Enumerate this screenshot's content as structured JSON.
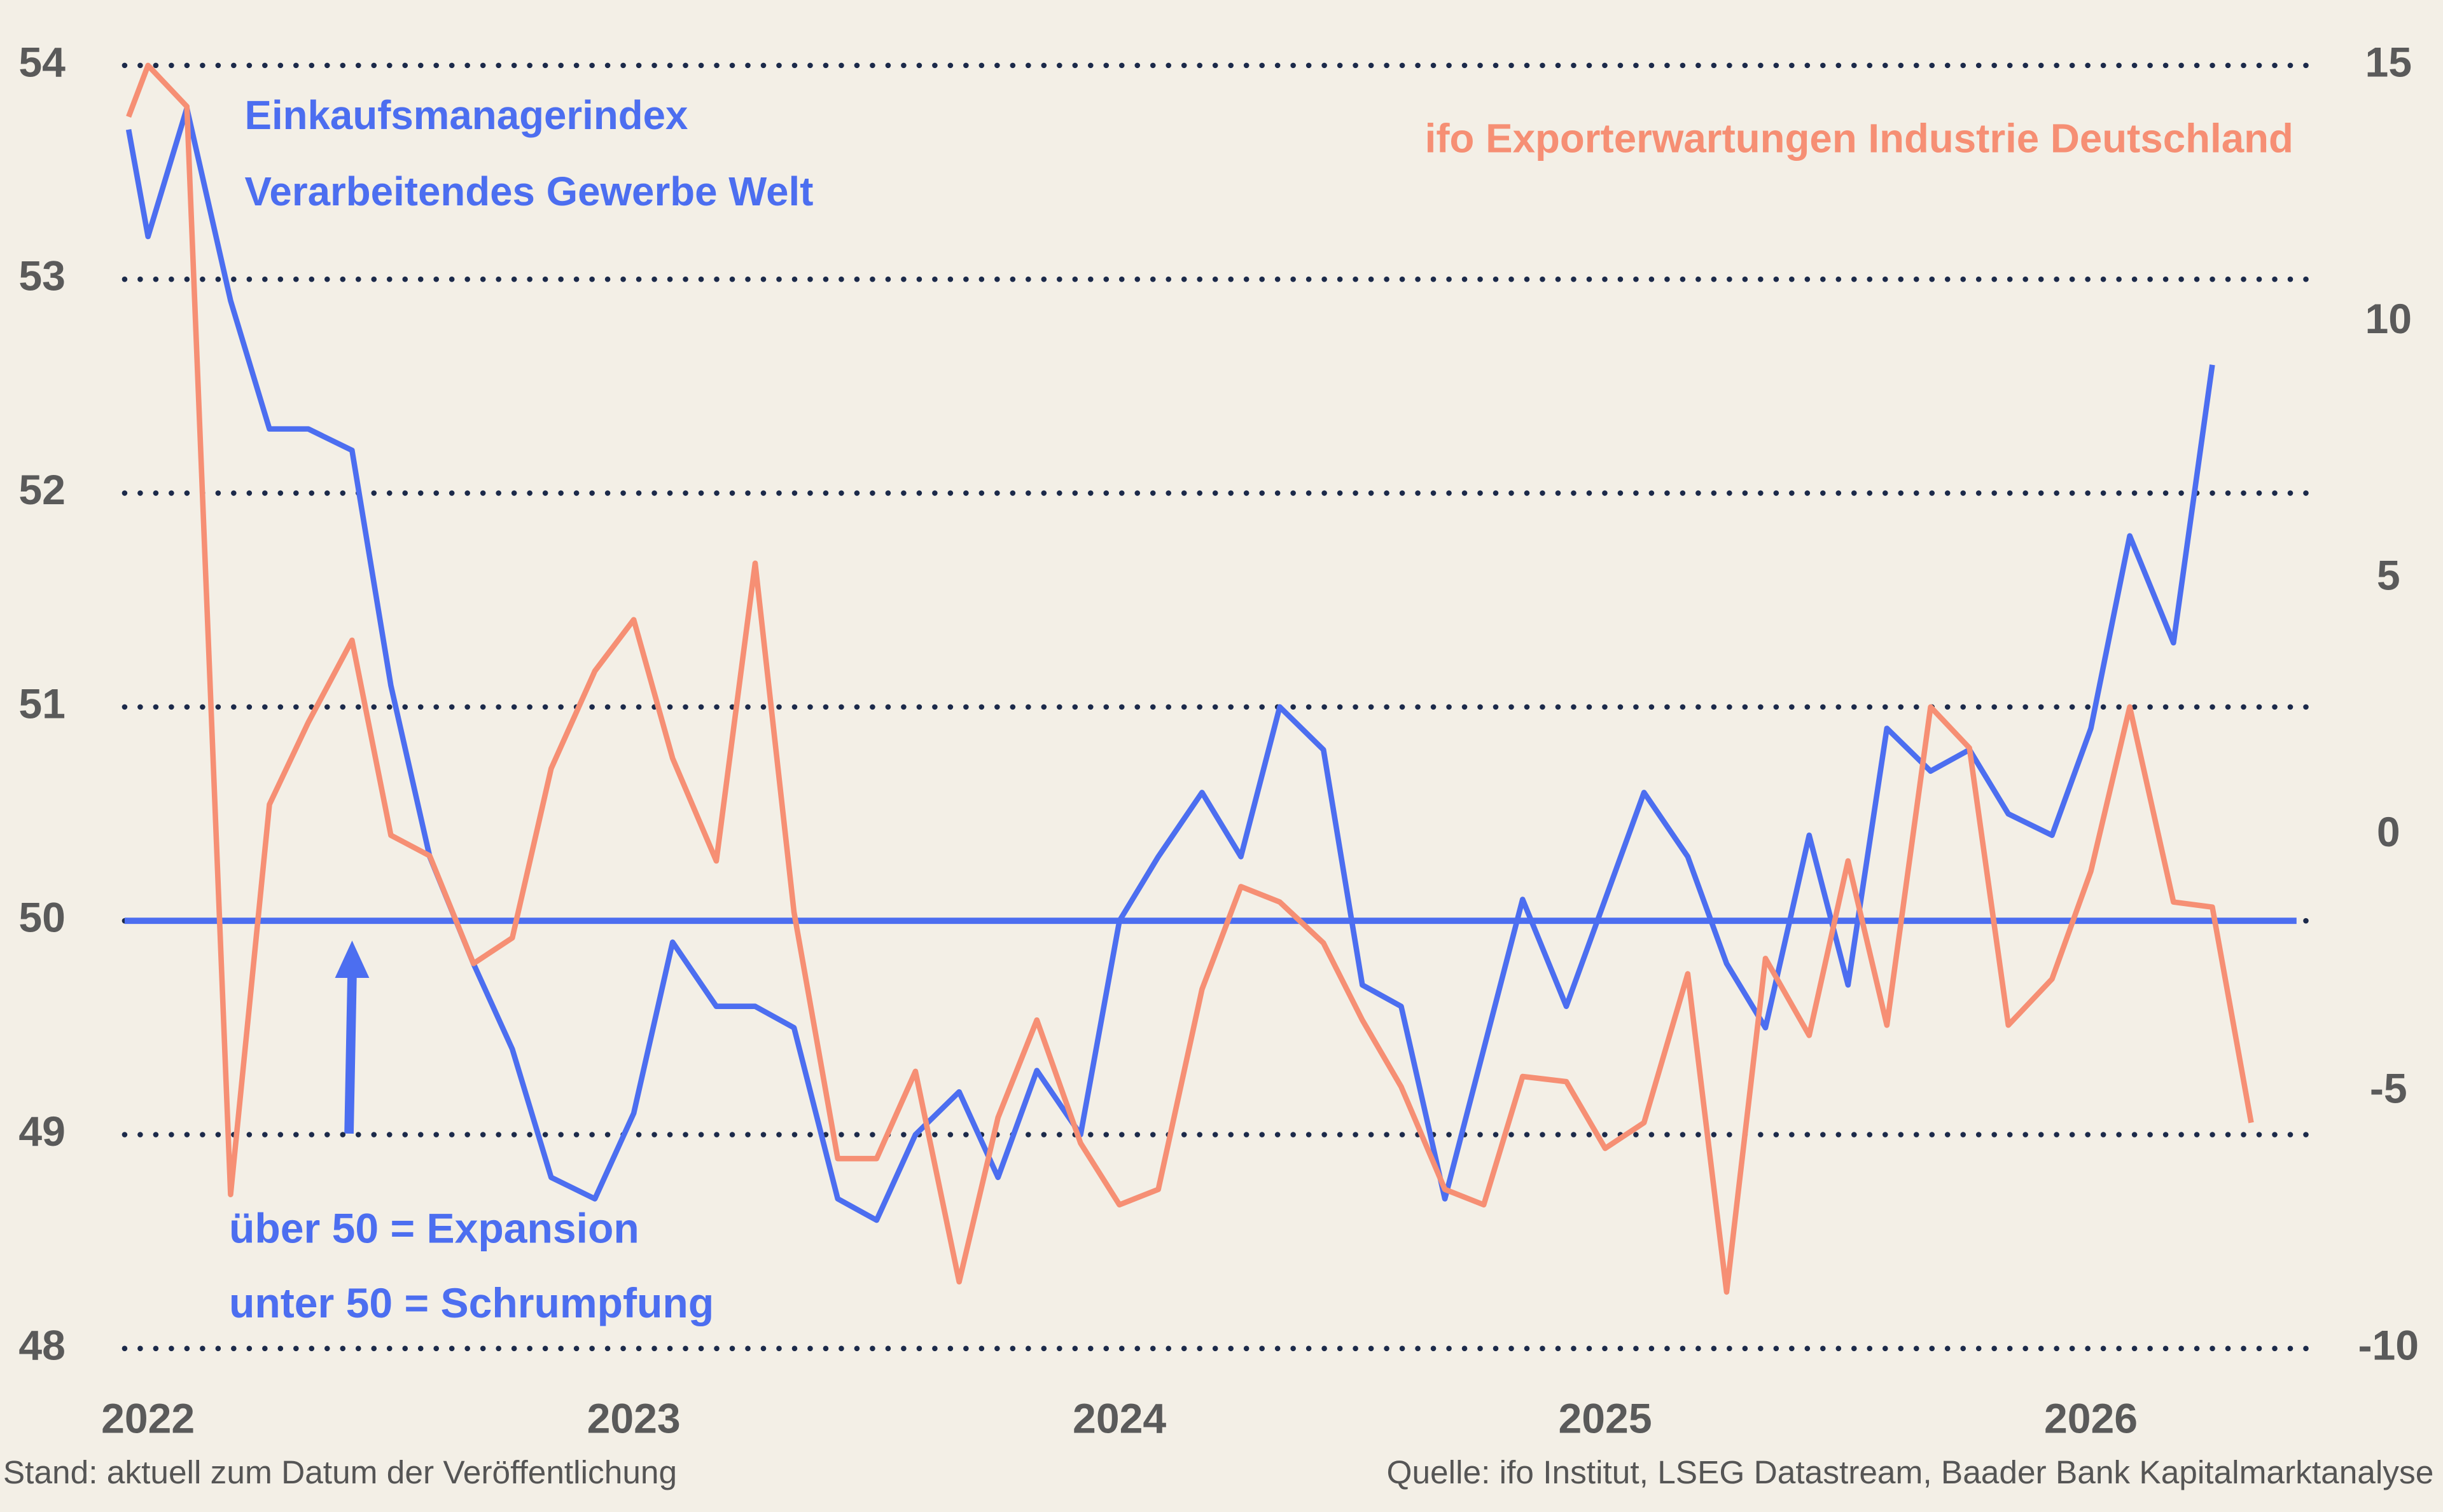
{
  "chart_data": {
    "type": "line",
    "x": [
      2021.96,
      2022,
      2022.08,
      2022.17,
      2022.25,
      2022.33,
      2022.42,
      2022.5,
      2022.58,
      2022.67,
      2022.75,
      2022.83,
      2022.92,
      2023,
      2023.08,
      2023.17,
      2023.25,
      2023.33,
      2023.42,
      2023.5,
      2023.58,
      2023.67,
      2023.75,
      2023.83,
      2023.92,
      2024,
      2024.08,
      2024.17,
      2024.25,
      2024.33,
      2024.42,
      2024.5,
      2024.58,
      2024.67,
      2024.75,
      2024.83,
      2024.92,
      2025,
      2025.08,
      2025.17,
      2025.25,
      2025.33,
      2025.42,
      2025.5,
      2025.58,
      2025.67,
      2025.75,
      2025.83,
      2025.92,
      2026,
      2026.08,
      2026.17,
      2026.25,
      2026.33
    ],
    "xlim": [
      2021.96,
      2026.5
    ],
    "xticks": [
      2022,
      2023,
      2024,
      2025,
      2026
    ],
    "ylim": [
      48,
      54
    ],
    "yticks": [
      48,
      49,
      50,
      51,
      52,
      53,
      54
    ],
    "y2lim": [
      -10,
      15
    ],
    "y2ticks": [
      15,
      10,
      5,
      0,
      -5,
      -10
    ],
    "grid": true,
    "reference_line": 50,
    "series": [
      {
        "name": [
          "Einkaufsmanagerindex",
          "Verarbeitendes Gewerbe Welt"
        ],
        "color": "#4c6ef0",
        "values": [
          53.7,
          53.2,
          53.8,
          52.9,
          52.3,
          52.3,
          52.2,
          51.1,
          50.3,
          49.8,
          49.4,
          48.8,
          48.7,
          49.1,
          49.9,
          49.6,
          49.6,
          49.5,
          48.7,
          48.6,
          49.0,
          49.2,
          48.8,
          49.3,
          49.0,
          50.0,
          50.3,
          50.6,
          50.3,
          51.0,
          50.8,
          49.7,
          49.6,
          48.7,
          49.4,
          50.1,
          49.6,
          50.1,
          50.6,
          50.3,
          49.8,
          49.5,
          50.4,
          49.7,
          50.9,
          50.7,
          50.8,
          50.5,
          50.4,
          50.9,
          51.8,
          51.3,
          52.6,
          null
        ]
      },
      {
        "name": "ifo Exporterwartungen Industrie Deutschland",
        "color": "#f68f74",
        "axis": "y2",
        "values": [
          14,
          15,
          14.2,
          -7,
          0.6,
          2.2,
          3.8,
          0,
          -0.4,
          -2.5,
          -2.0,
          1.3,
          3.2,
          4.2,
          1.5,
          -0.5,
          5.3,
          -1.5,
          -6.3,
          -6.3,
          -4.6,
          -8.7,
          -5.5,
          -3.6,
          -6.0,
          -7.2,
          -6.9,
          -3.0,
          -1.0,
          -1.3,
          -2.1,
          -3.6,
          -4.9,
          -6.9,
          -7.2,
          -4.7,
          -4.8,
          -6.1,
          -5.6,
          -2.7,
          -8.9,
          -2.4,
          -3.9,
          -0.5,
          -3.7,
          2.5,
          1.7,
          -3.7,
          -2.8,
          -0.7,
          2.5,
          -1.3,
          -1.4,
          -5.6
        ]
      }
    ],
    "annotations": [
      "über 50 = Expansion",
      "unter 50 = Schrumpfung"
    ],
    "footer_left": "Stand: aktuell zum Datum der Veröffentlichung",
    "footer_right": "Quelle: ifo Institut, LSEG Datastream, Baader Bank Kapitalmarktanalyse"
  }
}
